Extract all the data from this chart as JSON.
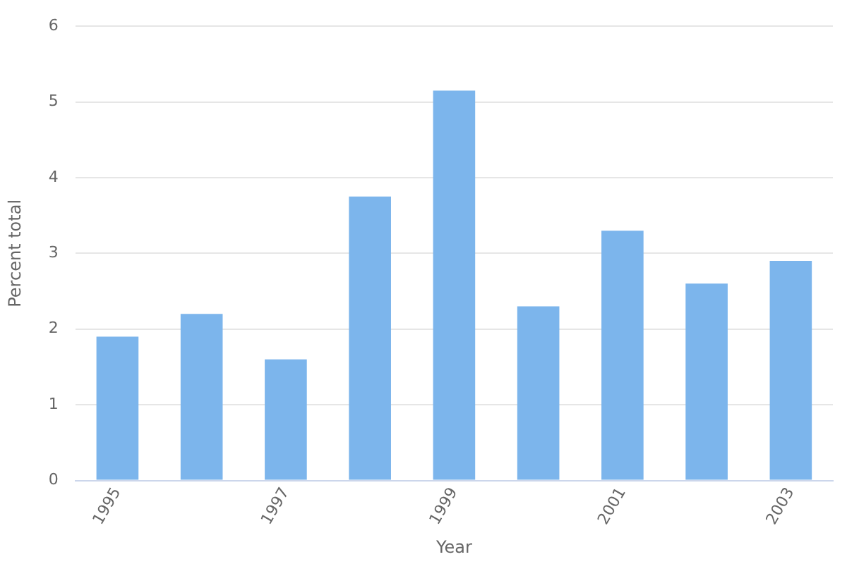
{
  "chart_data": {
    "type": "bar",
    "xlabel": "Year",
    "ylabel": "Percent total",
    "categories": [
      "1995",
      null,
      "1997",
      null,
      "1999",
      null,
      "2001",
      null,
      "2003"
    ],
    "values": [
      1.9,
      2.2,
      1.6,
      3.75,
      5.15,
      2.3,
      3.3,
      2.6,
      2.9
    ],
    "color": "#7cb5ec",
    "ylim": [
      0,
      6
    ],
    "yticks": [
      0,
      1,
      2,
      3,
      4,
      5,
      6
    ],
    "grid": "y",
    "legend": false
  }
}
